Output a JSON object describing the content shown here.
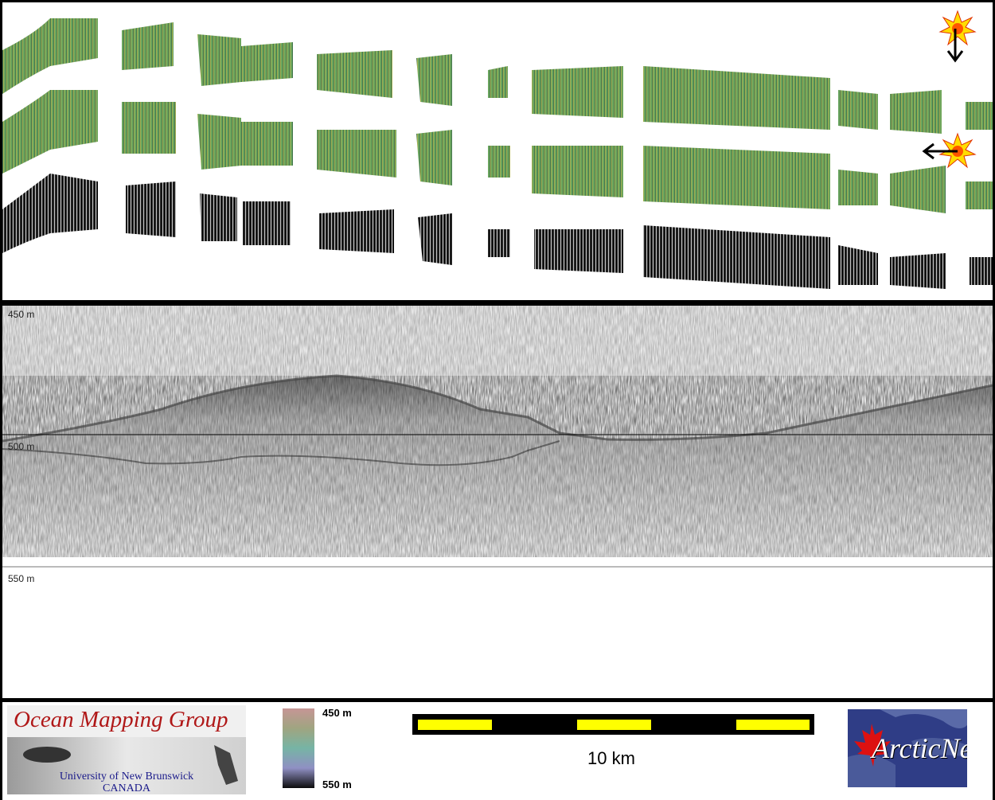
{
  "profile": {
    "depth_labels": [
      "450 m",
      "500 m",
      "550 m"
    ]
  },
  "footer": {
    "omg_logo": {
      "title": "Ocean Mapping Group",
      "subtitle_line1": "University of New Brunswick",
      "subtitle_line2": "CANADA"
    },
    "colorbar": {
      "top_label": "450 m",
      "bottom_label": "550 m"
    },
    "scale_bar": {
      "label": "10 km",
      "colors": {
        "bar": "#000000",
        "segment": "#ffff00"
      }
    },
    "arcticnet_logo": {
      "text": "ArcticNet"
    }
  },
  "icons": {
    "sun_light_down": "sun-illumination-down-icon",
    "sun_light_left": "sun-illumination-left-icon"
  }
}
